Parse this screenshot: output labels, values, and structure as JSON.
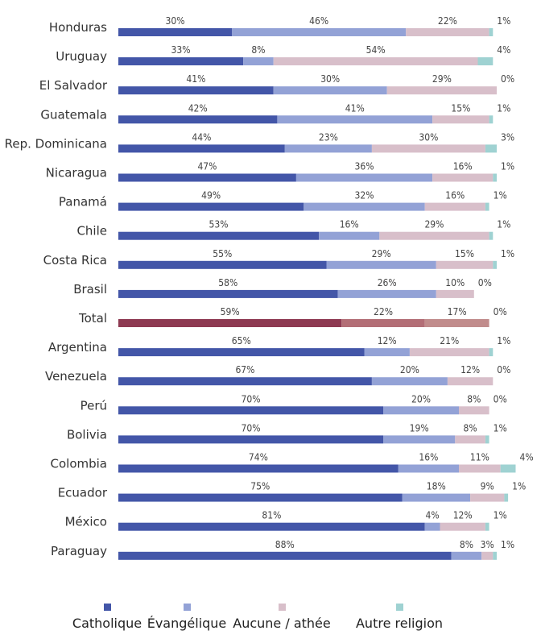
{
  "chart_data": {
    "type": "bar",
    "orientation": "horizontal",
    "stacked": true,
    "value_unit": "%",
    "xlim": [
      0,
      100
    ],
    "grid": false,
    "legend_position": "bottom",
    "categories": [
      "Honduras",
      "Uruguay",
      "El Salvador",
      "Guatemala",
      "Rep. Dominicana",
      "Nicaragua",
      "Panamá",
      "Chile",
      "Costa Rica",
      "Brasil",
      "Total",
      "Argentina",
      "Venezuela",
      "Perú",
      "Bolivia",
      "Colombia",
      "Ecuador",
      "México",
      "Paraguay"
    ],
    "highlight_category": "Total",
    "series": [
      {
        "name": "Catholique",
        "color": "#4356a8",
        "highlight_color": "#8e3a52",
        "values": [
          30,
          33,
          41,
          42,
          44,
          47,
          49,
          53,
          55,
          58,
          59,
          65,
          67,
          70,
          70,
          74,
          75,
          81,
          88
        ]
      },
      {
        "name": "Évangélique",
        "color": "#93a2d6",
        "highlight_color": "#b36e76",
        "values": [
          46,
          8,
          30,
          41,
          23,
          36,
          32,
          16,
          29,
          26,
          22,
          12,
          20,
          20,
          19,
          16,
          18,
          4,
          8
        ]
      },
      {
        "name": "Aucune / athée",
        "color": "#d8bfca",
        "highlight_color": "#c18c8c",
        "values": [
          22,
          54,
          29,
          15,
          30,
          16,
          16,
          29,
          15,
          10,
          17,
          21,
          12,
          8,
          8,
          11,
          9,
          12,
          3
        ]
      },
      {
        "name": "Autre religion",
        "color": "#9fd2d2",
        "highlight_color": "#c9b3b3",
        "values": [
          1,
          4,
          0,
          1,
          3,
          1,
          1,
          1,
          1,
          0,
          0,
          1,
          0,
          0,
          1,
          4,
          1,
          1,
          1
        ]
      }
    ]
  }
}
